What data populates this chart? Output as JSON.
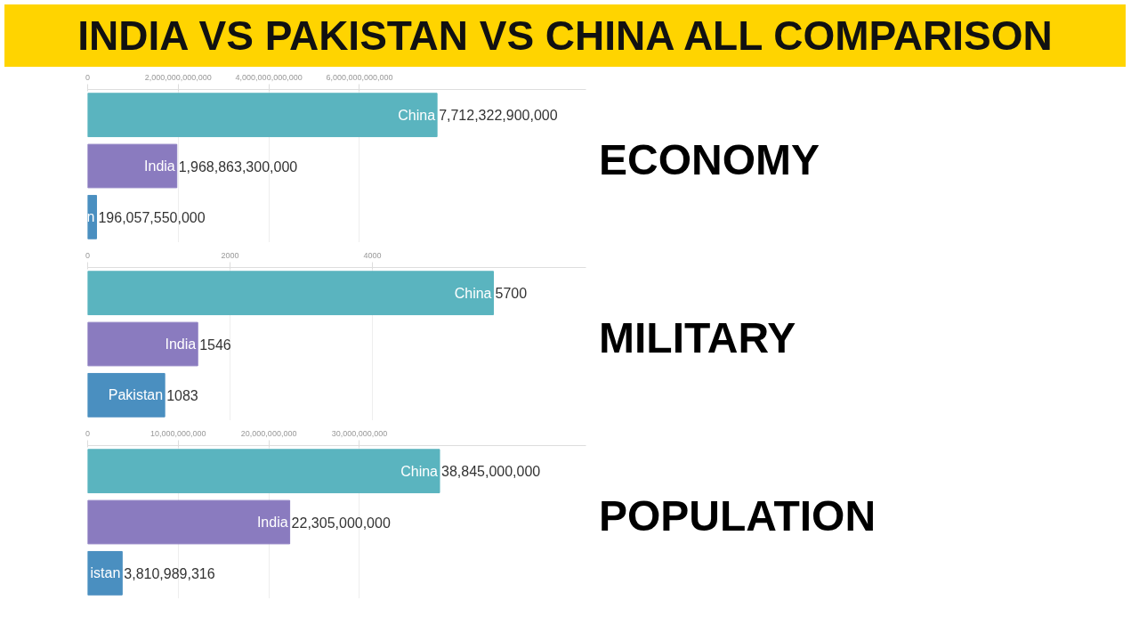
{
  "chart_data": [
    {
      "type": "bar",
      "orientation": "horizontal",
      "title": "ECONOMY",
      "annotations": [
        "INDIA VS PAKISTAN VS CHINA ALL COMPARISON"
      ],
      "categories": [
        "China",
        "India",
        "n"
      ],
      "values": [
        7712322900000,
        1968863300000,
        196057550000
      ],
      "colors": [
        "#5ab4bf",
        "#8a7bbf",
        "#4a8fc0"
      ],
      "value_labels": [
        "7,712,322,900,000",
        "1,968,863,300,000",
        "196,057,550,000"
      ],
      "xlim": [
        0,
        11000000000000
      ],
      "xticks": [
        {
          "value": 0,
          "label": "0"
        },
        {
          "value": 2000000000000,
          "label": "2,000,000,000,000"
        },
        {
          "value": 4000000000000,
          "label": "4,000,000,000,000"
        },
        {
          "value": 6000000000000,
          "label": "6,000,000,000,000"
        }
      ],
      "grid": "x"
    },
    {
      "type": "bar",
      "orientation": "horizontal",
      "title": "MILITARY",
      "categories": [
        "China",
        "India",
        "Pakistan"
      ],
      "values": [
        5700,
        1546,
        1083
      ],
      "colors": [
        "#5ab4bf",
        "#8a7bbf",
        "#4a8fc0"
      ],
      "data_labels": true,
      "xlim": [
        0,
        7000
      ],
      "xticks": [
        0,
        2000,
        4000
      ],
      "grid": "x"
    },
    {
      "type": "bar",
      "orientation": "horizontal",
      "title": "POPULATION",
      "categories": [
        "China",
        "India",
        "istan"
      ],
      "values": [
        38845000000,
        22305000000,
        3810989316
      ],
      "colors": [
        "#5ab4bf",
        "#8a7bbf",
        "#4a8fc0"
      ],
      "value_labels": [
        "38,845,000,000",
        "22,305,000,000",
        "3,810,989,316"
      ],
      "xlim": [
        0,
        55000000000
      ],
      "xticks": [
        {
          "value": 0,
          "label": "0"
        },
        {
          "value": 10000000000,
          "label": "10,000,000,000"
        },
        {
          "value": 20000000000,
          "label": "20,000,000,000"
        },
        {
          "value": 30000000000,
          "label": "30,000,000,000"
        }
      ],
      "grid": "x"
    }
  ]
}
